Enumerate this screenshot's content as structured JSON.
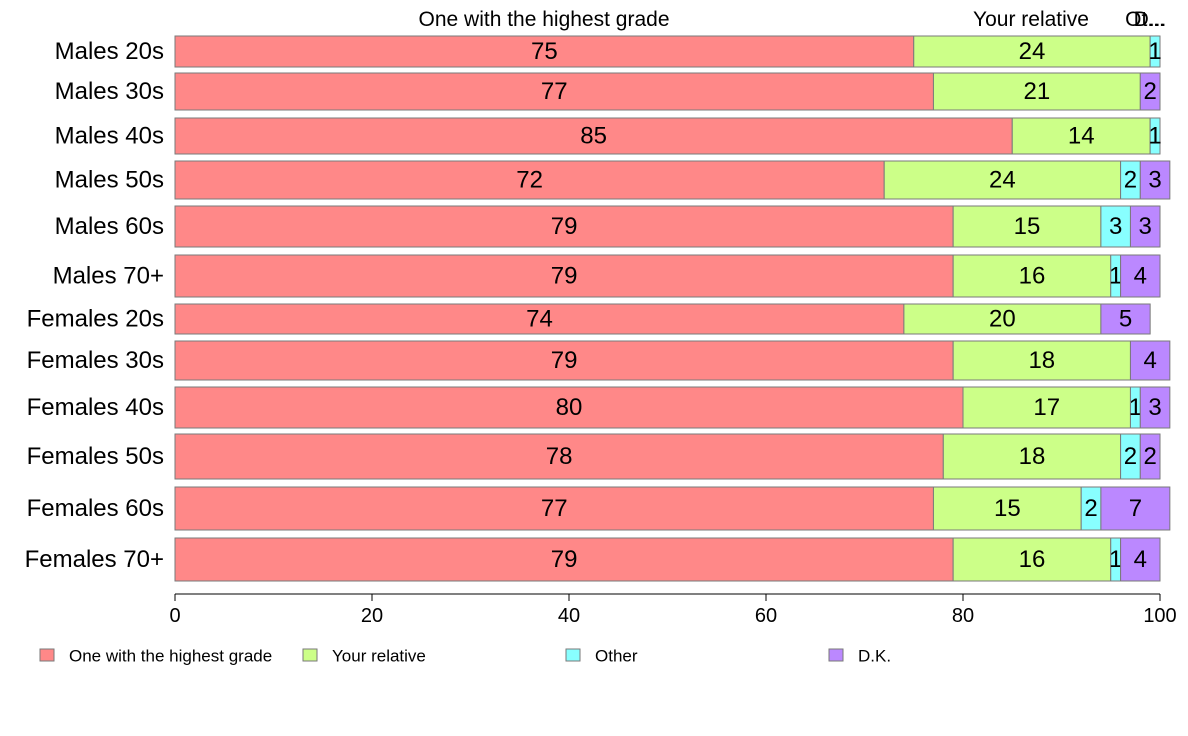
{
  "chart_data": {
    "type": "bar",
    "orientation": "horizontal",
    "stacked": true,
    "categories": [
      "Males 20s",
      "Males 30s",
      "Males 40s",
      "Males 50s",
      "Males 60s",
      "Males 70+",
      "Females 20s",
      "Females 30s",
      "Females 40s",
      "Females 50s",
      "Females 60s",
      "Females 70+"
    ],
    "series": [
      {
        "name": "One with the highest grade",
        "color": "#ff8888",
        "values": [
          75,
          77,
          85,
          72,
          79,
          79,
          74,
          79,
          80,
          78,
          77,
          79
        ]
      },
      {
        "name": "Your relative",
        "color": "#ccff88",
        "values": [
          24,
          21,
          14,
          24,
          15,
          16,
          20,
          18,
          17,
          18,
          15,
          16
        ]
      },
      {
        "name": "Other",
        "color": "#88ffff",
        "values": [
          1,
          0,
          1,
          2,
          3,
          1,
          0,
          0,
          1,
          2,
          2,
          1
        ]
      },
      {
        "name": "D.K.",
        "color": "#bb88ff",
        "values": [
          0,
          2,
          0,
          3,
          3,
          4,
          5,
          4,
          3,
          2,
          7,
          4
        ]
      }
    ],
    "top_labels": [
      "One with the highest grade",
      "Your relative",
      "Ot...",
      "D..."
    ],
    "xlim": [
      0,
      100
    ],
    "xticks": [
      0,
      20,
      40,
      60,
      80,
      100
    ],
    "legend_position": "bottom",
    "grid": false
  }
}
